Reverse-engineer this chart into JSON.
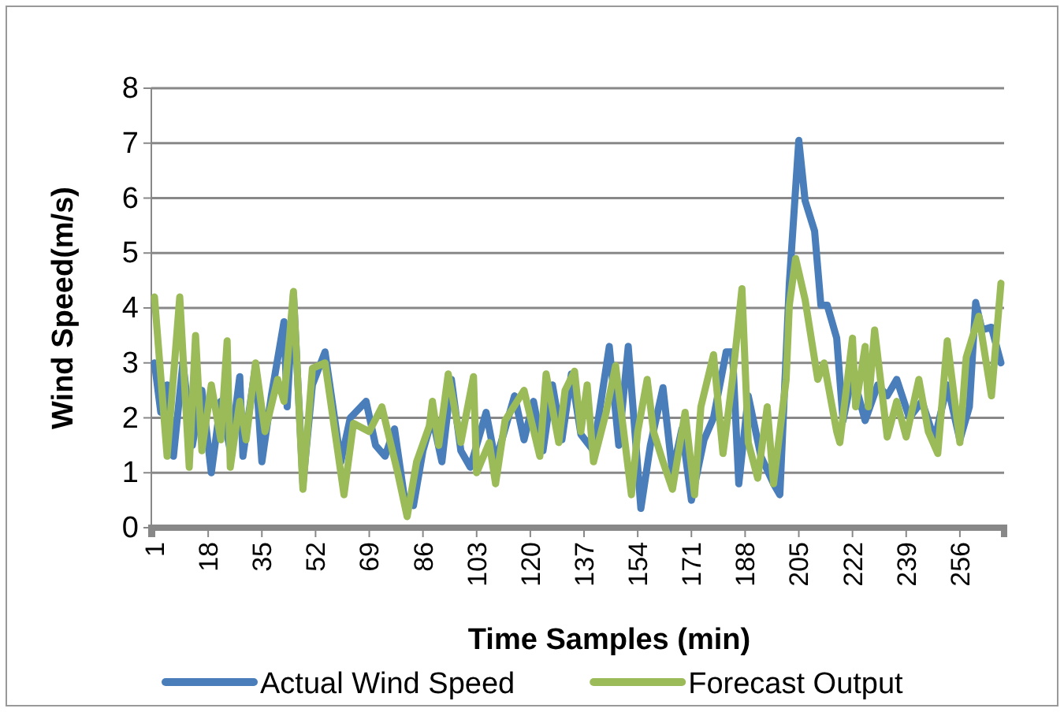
{
  "chart_data": {
    "type": "line",
    "xlabel": "Time Samples (min)",
    "ylabel": "Wind Speed(m/s)",
    "xlim": [
      0,
      270
    ],
    "xticks": [
      1,
      18,
      35,
      52,
      69,
      86,
      103,
      120,
      137,
      154,
      171,
      188,
      205,
      222,
      239,
      256
    ],
    "ylim": [
      0,
      8
    ],
    "yticks": [
      0,
      1,
      2,
      3,
      4,
      5,
      6,
      7,
      8
    ],
    "grid": "y",
    "legend": "bottom",
    "series": [
      {
        "name": "Actual Wind Speed",
        "color": "#4a7ebb",
        "x": [
          1,
          3,
          5,
          7,
          10,
          13,
          16,
          19,
          22,
          25,
          28,
          29,
          33,
          35,
          38,
          42,
          43,
          45,
          48,
          51,
          55,
          60,
          63,
          68,
          71,
          74,
          77,
          80,
          83,
          86,
          89,
          92,
          95,
          98,
          101,
          106,
          109,
          112,
          115,
          118,
          121,
          124,
          127,
          130,
          133,
          136,
          140,
          145,
          148,
          151,
          155,
          158,
          162,
          165,
          168,
          171,
          175,
          178,
          182,
          184,
          186,
          189,
          193,
          197,
          199,
          202,
          205,
          207,
          210,
          212,
          214,
          217,
          219,
          222,
          226,
          230,
          233,
          236,
          240,
          244,
          248,
          252,
          256,
          259,
          261,
          263,
          266,
          269
        ],
        "values": [
          3.0,
          2.1,
          2.6,
          1.3,
          3.0,
          1.5,
          2.5,
          1.0,
          2.3,
          1.4,
          2.75,
          1.3,
          2.95,
          1.2,
          2.4,
          3.75,
          2.2,
          4.25,
          0.8,
          2.6,
          3.2,
          1.2,
          2.0,
          2.3,
          1.5,
          1.3,
          1.8,
          0.6,
          0.4,
          1.4,
          2.0,
          1.2,
          2.7,
          1.4,
          1.1,
          2.1,
          1.2,
          1.8,
          2.4,
          1.6,
          2.3,
          1.4,
          2.6,
          1.6,
          2.8,
          1.7,
          1.4,
          3.3,
          1.5,
          3.3,
          0.35,
          1.5,
          2.55,
          1.0,
          1.8,
          0.5,
          1.6,
          2.0,
          3.2,
          3.2,
          0.8,
          2.4,
          1.3,
          0.8,
          0.6,
          4.45,
          7.05,
          5.95,
          5.4,
          4.05,
          4.05,
          3.45,
          1.95,
          2.8,
          1.95,
          2.6,
          2.4,
          2.7,
          2.0,
          2.3,
          1.6,
          2.6,
          1.6,
          2.2,
          4.1,
          3.6,
          3.65,
          3.0
        ]
      },
      {
        "name": "Forecast Output",
        "color": "#9bbb59",
        "x": [
          1,
          5,
          9,
          12,
          14,
          16,
          19,
          22,
          24,
          25,
          28,
          30,
          33,
          36,
          40,
          42,
          45,
          48,
          51,
          55,
          61,
          64,
          69,
          73,
          78,
          81,
          84,
          88,
          89,
          91,
          94,
          98,
          102,
          103,
          107,
          109,
          112,
          118,
          123,
          125,
          129,
          131,
          134,
          136,
          138,
          140,
          144,
          147,
          152,
          154,
          157,
          159,
          162,
          165,
          169,
          172,
          174,
          178,
          181,
          184,
          187,
          189,
          192,
          195,
          197,
          201,
          202,
          204,
          207,
          211,
          213,
          217,
          218,
          222,
          223,
          226,
          227,
          229,
          233,
          236,
          239,
          243,
          246,
          249,
          252,
          256,
          258,
          262,
          266,
          269
        ],
        "values": [
          4.2,
          1.3,
          4.2,
          1.1,
          3.5,
          1.4,
          2.6,
          1.6,
          3.4,
          1.1,
          2.3,
          1.6,
          3.0,
          1.75,
          2.7,
          2.3,
          4.3,
          0.7,
          2.9,
          3.0,
          0.6,
          1.9,
          1.75,
          2.2,
          1.0,
          0.2,
          1.2,
          1.85,
          2.3,
          1.5,
          2.8,
          1.55,
          2.75,
          1.0,
          1.55,
          0.8,
          1.95,
          2.5,
          1.3,
          2.8,
          1.55,
          2.5,
          2.85,
          1.75,
          2.6,
          1.2,
          2.1,
          2.95,
          0.6,
          1.75,
          2.7,
          1.75,
          1.2,
          0.7,
          2.1,
          0.6,
          2.2,
          3.15,
          1.35,
          2.7,
          4.35,
          1.55,
          0.9,
          2.2,
          0.8,
          2.7,
          4.05,
          4.9,
          4.15,
          2.7,
          3.0,
          1.75,
          1.55,
          3.45,
          2.2,
          3.3,
          2.2,
          3.6,
          1.65,
          2.3,
          1.65,
          2.7,
          1.75,
          1.35,
          3.4,
          1.55,
          3.1,
          3.85,
          2.4,
          4.45
        ]
      }
    ]
  }
}
